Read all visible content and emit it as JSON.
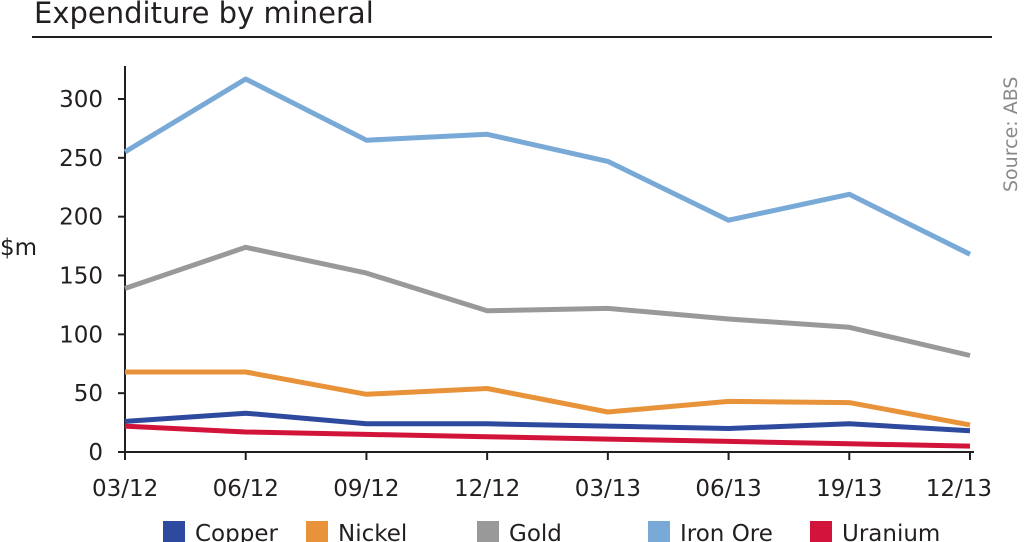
{
  "chart_data": {
    "type": "line",
    "title": "Expenditure by mineral",
    "source": "Source: ABS",
    "ylabel": "$m",
    "xlabel": "",
    "categories": [
      "03/12",
      "06/12",
      "09/12",
      "12/12",
      "03/13",
      "06/13",
      "19/13",
      "12/13"
    ],
    "yticks": [
      0,
      50,
      100,
      150,
      200,
      250,
      300
    ],
    "ylim": [
      0,
      320
    ],
    "grid": false,
    "legend_position": "bottom",
    "series": [
      {
        "name": "Copper",
        "color": "#2e4a9e",
        "values": [
          26,
          33,
          24,
          24,
          22,
          20,
          24,
          18
        ]
      },
      {
        "name": "Nickel",
        "color": "#e8923a",
        "values": [
          68,
          68,
          49,
          54,
          34,
          43,
          42,
          23
        ]
      },
      {
        "name": "Gold",
        "color": "#999999",
        "values": [
          139,
          174,
          152,
          120,
          122,
          113,
          106,
          82
        ]
      },
      {
        "name": "Iron Ore",
        "color": "#79a9d6",
        "values": [
          255,
          317,
          265,
          270,
          247,
          197,
          219,
          168
        ]
      },
      {
        "name": "Uranium",
        "color": "#d2143a",
        "values": [
          22,
          17,
          15,
          13,
          11,
          9,
          7,
          5
        ]
      }
    ]
  }
}
